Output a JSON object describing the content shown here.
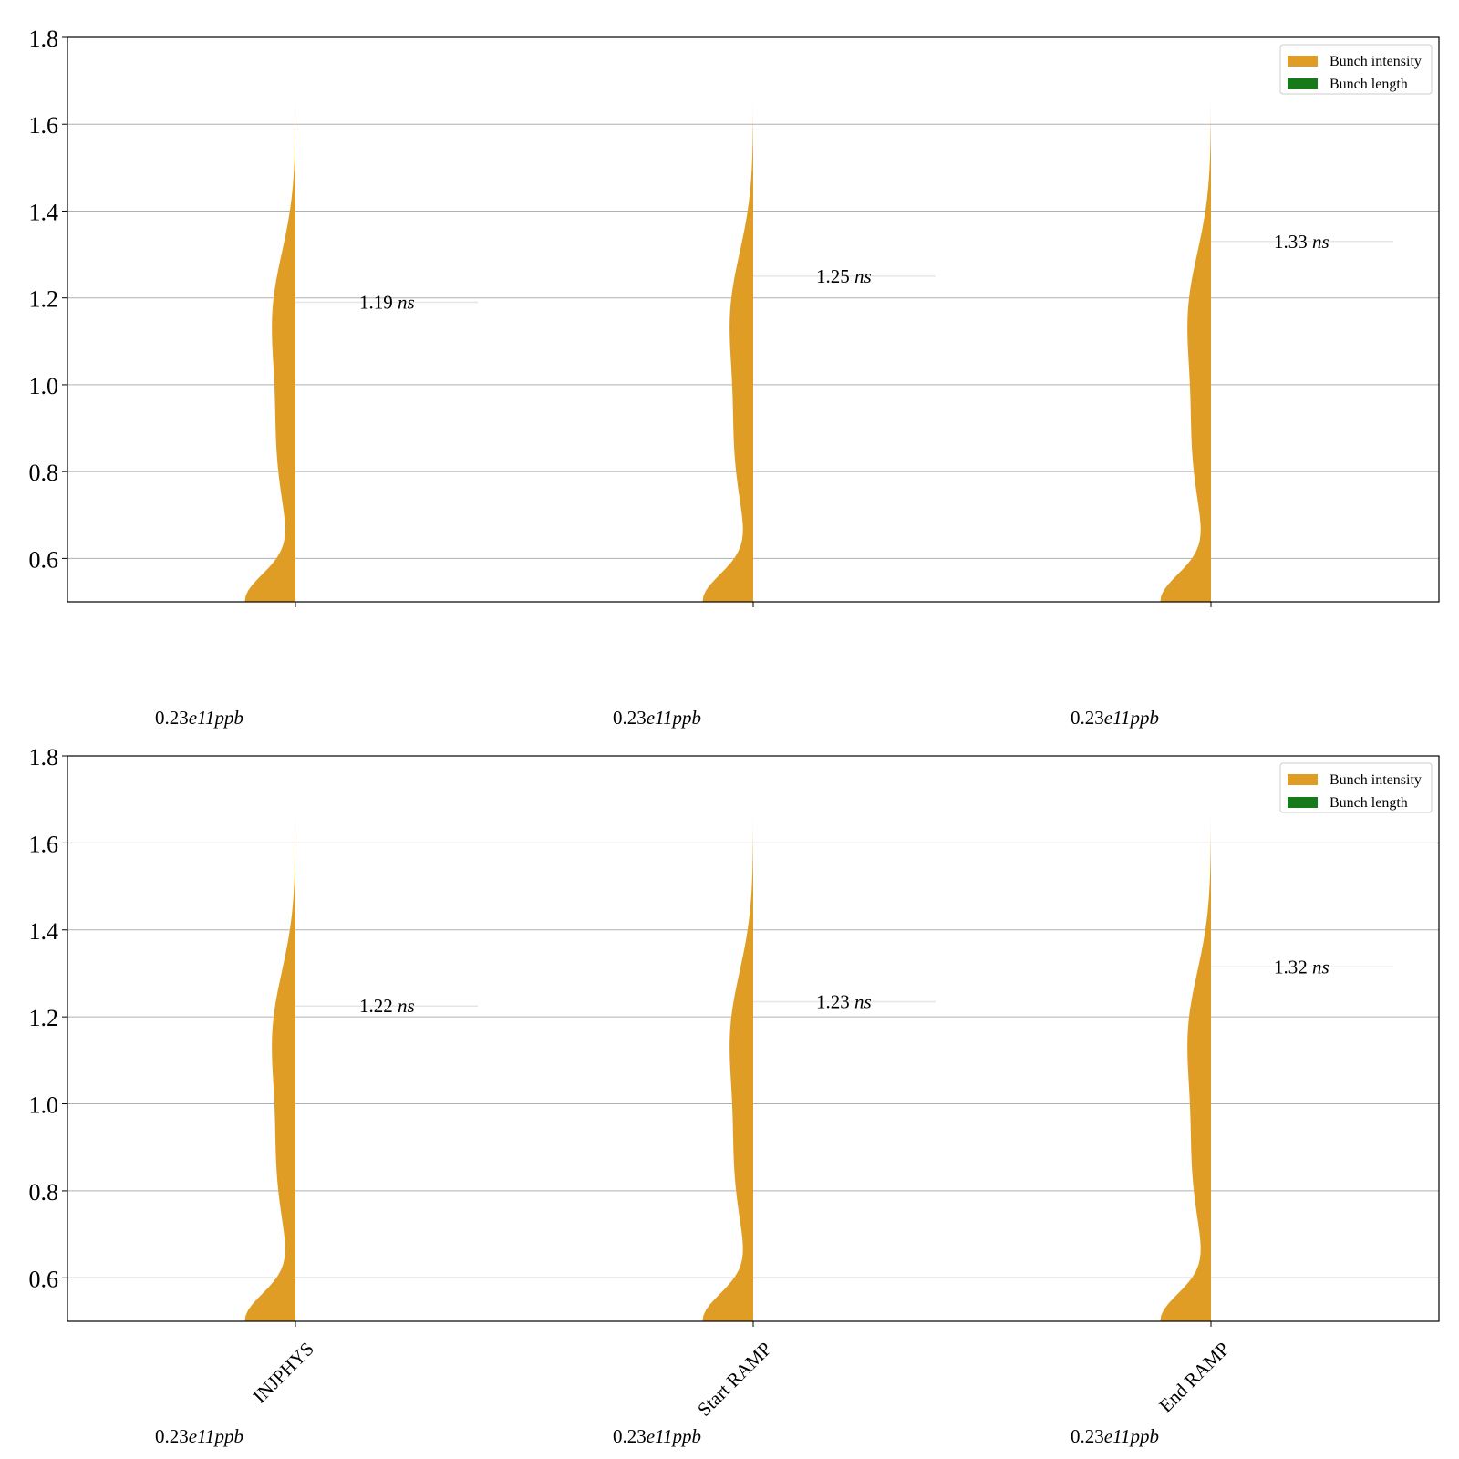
{
  "colors": {
    "intensity": "#e09d25",
    "length": "#157a17",
    "grid": "#b0b0b0",
    "axis": "#000000",
    "median_line": "#e6e6e6"
  },
  "chart_data": [
    {
      "type": "violin",
      "ylim": [
        0.5,
        1.8
      ],
      "yticks": [
        "0.6",
        "0.8",
        "1.0",
        "1.2",
        "1.4",
        "1.6",
        "1.8"
      ],
      "grid": "horizontal",
      "legend_position": "top-right",
      "legend": [
        "Bunch intensity",
        "Bunch length"
      ],
      "categories": [
        "INJPHYS",
        "Start RAMP",
        "End RAMP"
      ],
      "show_category_labels": false,
      "length_labels": [
        {
          "value": "1.19",
          "unit": "ns"
        },
        {
          "value": "1.25",
          "unit": "ns"
        },
        {
          "value": "1.33",
          "unit": "ns"
        }
      ],
      "length_medians": [
        1.19,
        1.25,
        1.33
      ],
      "intensity_labels": [
        {
          "value": "0.23",
          "exp": "e11",
          "unit": "ppb"
        },
        {
          "value": "0.23",
          "exp": "e11",
          "unit": "ppb"
        },
        {
          "value": "0.23",
          "exp": "e11",
          "unit": "ppb"
        }
      ],
      "intensity_violin_tops": [
        1.67,
        1.665,
        1.665
      ]
    },
    {
      "type": "violin",
      "ylim": [
        0.5,
        1.8
      ],
      "yticks": [
        "0.6",
        "0.8",
        "1.0",
        "1.2",
        "1.4",
        "1.6",
        "1.8"
      ],
      "grid": "horizontal",
      "legend_position": "top-right",
      "legend": [
        "Bunch intensity",
        "Bunch length"
      ],
      "categories": [
        "INJPHYS",
        "Start RAMP",
        "End RAMP"
      ],
      "show_category_labels": true,
      "length_labels": [
        {
          "value": "1.22",
          "unit": "ns"
        },
        {
          "value": "1.23",
          "unit": "ns"
        },
        {
          "value": "1.32",
          "unit": "ns"
        }
      ],
      "length_medians": [
        1.225,
        1.235,
        1.315
      ],
      "intensity_labels": [
        {
          "value": "0.23",
          "exp": "e11",
          "unit": "ppb"
        },
        {
          "value": "0.23",
          "exp": "e11",
          "unit": "ppb"
        },
        {
          "value": "0.23",
          "exp": "e11",
          "unit": "ppb"
        }
      ],
      "intensity_violin_tops": [
        1.68,
        1.678,
        1.675
      ]
    }
  ]
}
